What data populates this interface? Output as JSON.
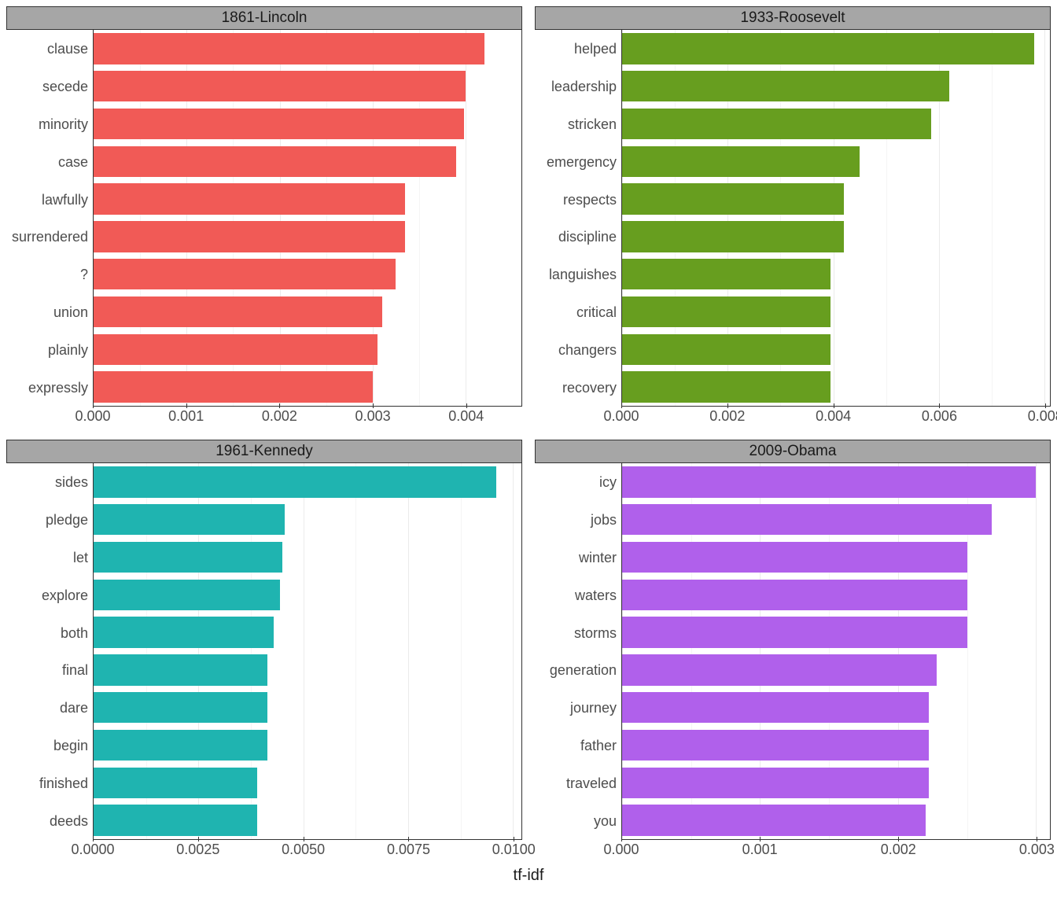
{
  "global_xlabel": "tf-idf",
  "layout": {
    "rows": 2,
    "cols": 2,
    "background_color": "#ffffff",
    "strip_bg": "#a6a6a6",
    "strip_text_color": "#1a1a1a",
    "grid_color": "#ebebeb",
    "axis_text_color": "#4d4d4d",
    "panel_border_color": "#333333",
    "font_family": "Arial",
    "strip_fontsize": 19,
    "axis_fontsize": 18,
    "xlabel_fontsize": 20
  },
  "facets": [
    {
      "title": "1861-Lincoln",
      "bar_color": "#f15a56",
      "xlim": [
        0,
        0.0046
      ],
      "xticks": [
        {
          "pos": 0.0,
          "label": "0.000"
        },
        {
          "pos": 0.001,
          "label": "0.001"
        },
        {
          "pos": 0.002,
          "label": "0.002"
        },
        {
          "pos": 0.003,
          "label": "0.003"
        },
        {
          "pos": 0.004,
          "label": "0.004"
        }
      ],
      "bars": [
        {
          "label": "clause",
          "value": 0.0042
        },
        {
          "label": "secede",
          "value": 0.004
        },
        {
          "label": "minority",
          "value": 0.00398
        },
        {
          "label": "case",
          "value": 0.0039
        },
        {
          "label": "lawfully",
          "value": 0.00335
        },
        {
          "label": "surrendered",
          "value": 0.00335
        },
        {
          "label": "?",
          "value": 0.00325
        },
        {
          "label": "union",
          "value": 0.0031
        },
        {
          "label": "plainly",
          "value": 0.00305
        },
        {
          "label": "expressly",
          "value": 0.003
        }
      ]
    },
    {
      "title": "1933-Roosevelt",
      "bar_color": "#679e1f",
      "xlim": [
        0,
        0.0081
      ],
      "xticks": [
        {
          "pos": 0.0,
          "label": "0.000"
        },
        {
          "pos": 0.002,
          "label": "0.002"
        },
        {
          "pos": 0.004,
          "label": "0.004"
        },
        {
          "pos": 0.006,
          "label": "0.006"
        },
        {
          "pos": 0.008,
          "label": "0.008"
        }
      ],
      "bars": [
        {
          "label": "helped",
          "value": 0.0078
        },
        {
          "label": "leadership",
          "value": 0.0062
        },
        {
          "label": "stricken",
          "value": 0.00585
        },
        {
          "label": "emergency",
          "value": 0.0045
        },
        {
          "label": "respects",
          "value": 0.0042
        },
        {
          "label": "discipline",
          "value": 0.0042
        },
        {
          "label": "languishes",
          "value": 0.00395
        },
        {
          "label": "critical",
          "value": 0.00395
        },
        {
          "label": "changers",
          "value": 0.00395
        },
        {
          "label": "recovery",
          "value": 0.00395
        }
      ]
    },
    {
      "title": "1961-Kennedy",
      "bar_color": "#1fb4b0",
      "xlim": [
        0,
        0.0102
      ],
      "xticks": [
        {
          "pos": 0.0,
          "label": "0.0000"
        },
        {
          "pos": 0.0025,
          "label": "0.0025"
        },
        {
          "pos": 0.005,
          "label": "0.0050"
        },
        {
          "pos": 0.0075,
          "label": "0.0075"
        },
        {
          "pos": 0.01,
          "label": "0.0100"
        }
      ],
      "bars": [
        {
          "label": "sides",
          "value": 0.0096
        },
        {
          "label": "pledge",
          "value": 0.00455
        },
        {
          "label": "let",
          "value": 0.0045
        },
        {
          "label": "explore",
          "value": 0.00445
        },
        {
          "label": "both",
          "value": 0.0043
        },
        {
          "label": "final",
          "value": 0.00415
        },
        {
          "label": "dare",
          "value": 0.00415
        },
        {
          "label": "begin",
          "value": 0.00415
        },
        {
          "label": "finished",
          "value": 0.0039
        },
        {
          "label": "deeds",
          "value": 0.0039
        }
      ]
    },
    {
      "title": "2009-Obama",
      "bar_color": "#b060eb",
      "xlim": [
        0,
        0.0031
      ],
      "xticks": [
        {
          "pos": 0.0,
          "label": "0.000"
        },
        {
          "pos": 0.001,
          "label": "0.001"
        },
        {
          "pos": 0.002,
          "label": "0.002"
        },
        {
          "pos": 0.003,
          "label": "0.003"
        }
      ],
      "bars": [
        {
          "label": "icy",
          "value": 0.003
        },
        {
          "label": "jobs",
          "value": 0.00268
        },
        {
          "label": "winter",
          "value": 0.0025
        },
        {
          "label": "waters",
          "value": 0.0025
        },
        {
          "label": "storms",
          "value": 0.0025
        },
        {
          "label": "generation",
          "value": 0.00228
        },
        {
          "label": "journey",
          "value": 0.00222
        },
        {
          "label": "father",
          "value": 0.00222
        },
        {
          "label": "traveled",
          "value": 0.00222
        },
        {
          "label": "you",
          "value": 0.0022
        }
      ]
    }
  ]
}
